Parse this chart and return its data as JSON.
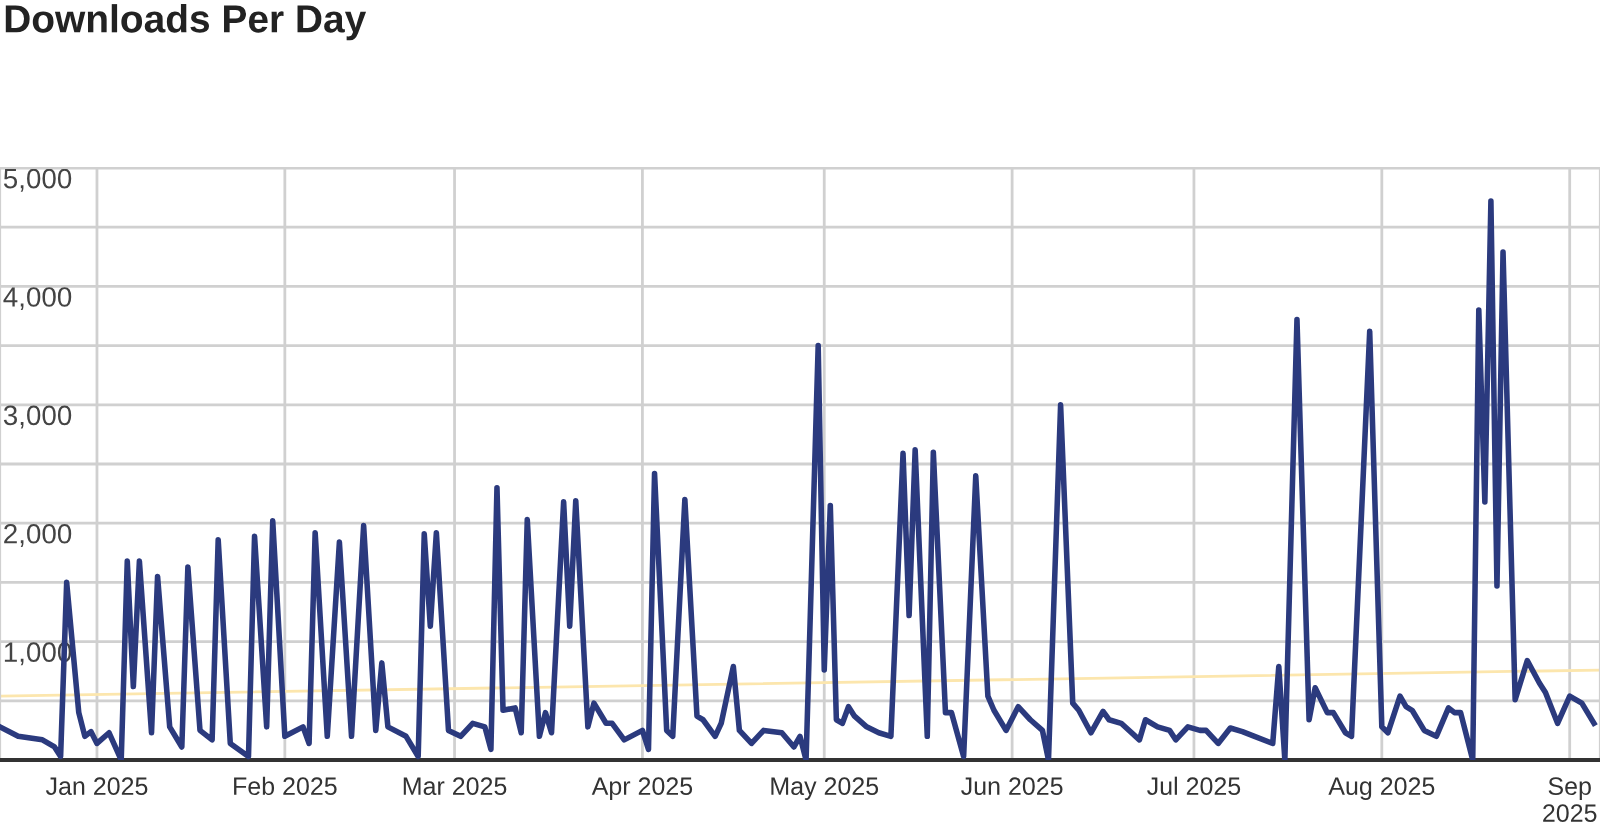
{
  "chart_data": {
    "type": "line",
    "title": "Downloads Per Day",
    "x": [
      "2024-12-16",
      "2024-12-19",
      "2024-12-23",
      "2024-12-25",
      "2024-12-26",
      "2024-12-27",
      "2024-12-29",
      "2024-12-30",
      "2024-12-31",
      "2025-01-01",
      "2025-01-03",
      "2025-01-05",
      "2025-01-06",
      "2025-01-07",
      "2025-01-08",
      "2025-01-10",
      "2025-01-11",
      "2025-01-13",
      "2025-01-15",
      "2025-01-16",
      "2025-01-18",
      "2025-01-20",
      "2025-01-21",
      "2025-01-23",
      "2025-01-26",
      "2025-01-27",
      "2025-01-29",
      "2025-01-30",
      "2025-02-01",
      "2025-02-04",
      "2025-02-05",
      "2025-02-06",
      "2025-02-08",
      "2025-02-10",
      "2025-02-12",
      "2025-02-14",
      "2025-02-16",
      "2025-02-17",
      "2025-02-18",
      "2025-02-21",
      "2025-02-23",
      "2025-02-24",
      "2025-02-25",
      "2025-02-26",
      "2025-02-28",
      "2025-03-02",
      "2025-03-04",
      "2025-03-06",
      "2025-03-07",
      "2025-03-08",
      "2025-03-09",
      "2025-03-11",
      "2025-03-12",
      "2025-03-13",
      "2025-03-15",
      "2025-03-16",
      "2025-03-17",
      "2025-03-19",
      "2025-03-20",
      "2025-03-21",
      "2025-03-23",
      "2025-03-24",
      "2025-03-26",
      "2025-03-27",
      "2025-03-29",
      "2025-04-01",
      "2025-04-02",
      "2025-04-03",
      "2025-04-05",
      "2025-04-06",
      "2025-04-08",
      "2025-04-10",
      "2025-04-11",
      "2025-04-13",
      "2025-04-14",
      "2025-04-16",
      "2025-04-17",
      "2025-04-19",
      "2025-04-21",
      "2025-04-24",
      "2025-04-26",
      "2025-04-27",
      "2025-04-28",
      "2025-04-30",
      "2025-05-01",
      "2025-05-02",
      "2025-05-03",
      "2025-05-04",
      "2025-05-05",
      "2025-05-06",
      "2025-05-08",
      "2025-05-10",
      "2025-05-12",
      "2025-05-14",
      "2025-05-15",
      "2025-05-16",
      "2025-05-18",
      "2025-05-19",
      "2025-05-21",
      "2025-05-22",
      "2025-05-24",
      "2025-05-26",
      "2025-05-28",
      "2025-05-29",
      "2025-05-31",
      "2025-06-02",
      "2025-06-04",
      "2025-06-06",
      "2025-06-07",
      "2025-06-09",
      "2025-06-11",
      "2025-06-12",
      "2025-06-14",
      "2025-06-16",
      "2025-06-17",
      "2025-06-19",
      "2025-06-22",
      "2025-06-23",
      "2025-06-25",
      "2025-06-27",
      "2025-06-28",
      "2025-06-30",
      "2025-07-02",
      "2025-07-03",
      "2025-07-05",
      "2025-07-07",
      "2025-07-09",
      "2025-07-11",
      "2025-07-14",
      "2025-07-15",
      "2025-07-16",
      "2025-07-18",
      "2025-07-20",
      "2025-07-21",
      "2025-07-23",
      "2025-07-24",
      "2025-07-26",
      "2025-07-27",
      "2025-07-30",
      "2025-08-01",
      "2025-08-02",
      "2025-08-04",
      "2025-08-05",
      "2025-08-06",
      "2025-08-08",
      "2025-08-10",
      "2025-08-12",
      "2025-08-13",
      "2025-08-14",
      "2025-08-16",
      "2025-08-17",
      "2025-08-18",
      "2025-08-19",
      "2025-08-20",
      "2025-08-21",
      "2025-08-23",
      "2025-08-25",
      "2025-08-27",
      "2025-08-28",
      "2025-08-30",
      "2025-09-01",
      "2025-09-03",
      "2025-09-05"
    ],
    "series": [
      {
        "color": "#2b3a7e",
        "values": [
          280,
          200,
          170,
          110,
          30,
          1500,
          400,
          200,
          240,
          140,
          230,
          0,
          1680,
          620,
          1680,
          230,
          1550,
          280,
          110,
          1630,
          250,
          170,
          1860,
          140,
          30,
          1890,
          280,
          2020,
          200,
          280,
          140,
          1920,
          200,
          1840,
          200,
          1980,
          250,
          820,
          280,
          200,
          30,
          1910,
          1130,
          1920,
          250,
          200,
          310,
          280,
          90,
          2300,
          420,
          440,
          230,
          2030,
          200,
          400,
          230,
          2180,
          1130,
          2190,
          280,
          480,
          310,
          310,
          170,
          250,
          90,
          2420,
          250,
          200,
          2200,
          370,
          340,
          200,
          310,
          790,
          250,
          140,
          250,
          230,
          110,
          200,
          0,
          3500,
          760,
          2150,
          340,
          310,
          450,
          370,
          280,
          230,
          200,
          2590,
          1220,
          2620,
          200,
          2600,
          400,
          400,
          30,
          2400,
          540,
          420,
          250,
          450,
          340,
          250,
          0,
          3000,
          480,
          420,
          230,
          410,
          340,
          310,
          170,
          340,
          280,
          250,
          170,
          280,
          250,
          250,
          140,
          270,
          240,
          200,
          140,
          790,
          0,
          3720,
          340,
          610,
          400,
          400,
          230,
          200,
          3620,
          280,
          230,
          540,
          450,
          420,
          250,
          200,
          440,
          400,
          400,
          0,
          3800,
          2180,
          4720,
          1470,
          4290,
          510,
          840,
          650,
          570,
          310,
          540,
          480,
          310
        ]
      },
      {
        "type": "line",
        "color": "#fce6ad",
        "x": [
          "2024-12-16",
          "2025-09-06"
        ],
        "values": [
          540,
          760
        ]
      }
    ],
    "xlim": [
      "2024-12-16",
      "2025-09-06"
    ],
    "xticks": [
      {
        "value": "2025-01-01",
        "label": "Jan 2025"
      },
      {
        "value": "2025-02-01",
        "label": "Feb 2025"
      },
      {
        "value": "2025-03-01",
        "label": "Mar 2025"
      },
      {
        "value": "2025-04-01",
        "label": "Apr 2025"
      },
      {
        "value": "2025-05-01",
        "label": "May 2025"
      },
      {
        "value": "2025-06-01",
        "label": "Jun 2025"
      },
      {
        "value": "2025-07-01",
        "label": "Jul 2025"
      },
      {
        "value": "2025-08-01",
        "label": "Aug 2025"
      },
      {
        "value": "2025-09-01",
        "label": "Sep\n2025"
      }
    ],
    "ylim": [
      0,
      5000
    ],
    "yticks": [
      {
        "value": 0,
        "label": null
      },
      {
        "value": 500,
        "label": null
      },
      {
        "value": 1000,
        "label": "1,000"
      },
      {
        "value": 1500,
        "label": null
      },
      {
        "value": 2000,
        "label": "2,000"
      },
      {
        "value": 2500,
        "label": null
      },
      {
        "value": 3000,
        "label": "3,000"
      },
      {
        "value": 3500,
        "label": null
      },
      {
        "value": 4000,
        "label": "4,000"
      },
      {
        "value": 4500,
        "label": null
      },
      {
        "value": 5000,
        "label": "5,000"
      }
    ],
    "grid": true,
    "marker": "none",
    "line_style": "solid"
  }
}
